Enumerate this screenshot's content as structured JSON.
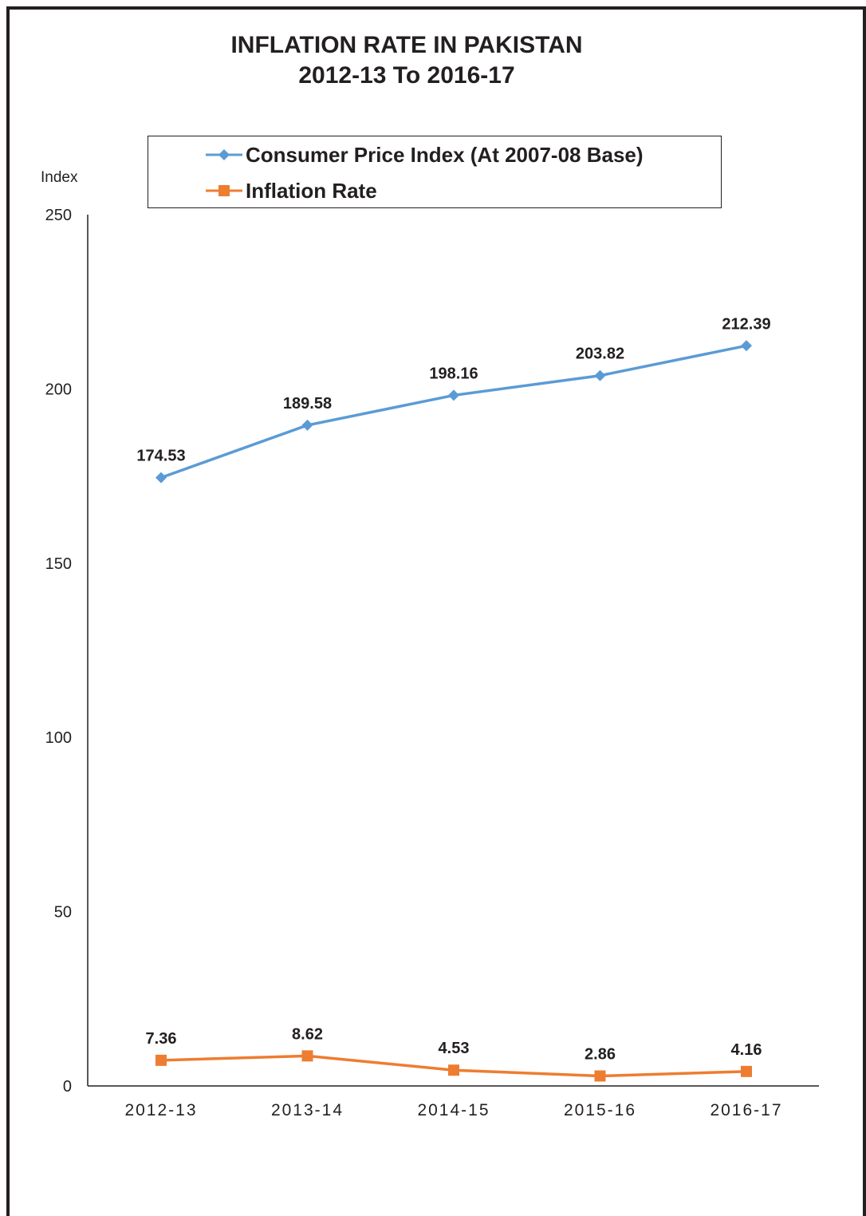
{
  "chart_data": {
    "type": "line",
    "title": "INFLATION RATE IN PAKISTAN",
    "subtitle": "2012-13 To 2016-17",
    "ylabel": "Index",
    "xlabel": "",
    "ylim": [
      0,
      250
    ],
    "yticks": [
      "0",
      "50",
      "100",
      "150",
      "200",
      "250"
    ],
    "categories": [
      "2012-13",
      "2013-14",
      "2014-15",
      "2015-16",
      "2016-17"
    ],
    "series": [
      {
        "name": "Consumer Price Index (At 2007-08 Base)",
        "values": [
          174.53,
          189.58,
          198.16,
          203.82,
          212.39
        ],
        "labels": [
          "174.53",
          "189.58",
          "198.16",
          "203.82",
          "212.39"
        ],
        "color": "#5b9bd5",
        "marker": "diamond"
      },
      {
        "name": "Inflation Rate",
        "values": [
          7.36,
          8.62,
          4.53,
          2.86,
          4.16
        ],
        "labels": [
          "7.36",
          "8.62",
          "4.53",
          "2.86",
          "4.16"
        ],
        "color": "#ed7d31",
        "marker": "square"
      }
    ],
    "grid": false,
    "legend": "top"
  }
}
